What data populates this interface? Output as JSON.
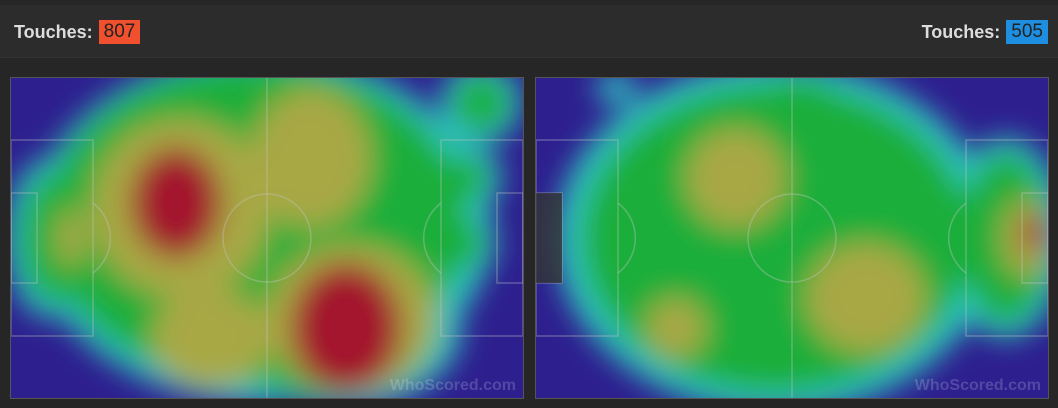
{
  "home": {
    "label": "Touches:",
    "count": "807",
    "color": "#f0502d"
  },
  "away": {
    "label": "Touches:",
    "count": "505",
    "color": "#1e8fe0"
  },
  "heatmaps": [
    {
      "team": "home",
      "watermark": "WhoScored.com"
    },
    {
      "team": "away",
      "watermark": "WhoScored.com"
    }
  ],
  "colors": {
    "low": "#2e1f8f",
    "cyan": "#2ec8c0",
    "green": "#1fae3a",
    "yellow": "#a8a845",
    "red": "#a3182e"
  }
}
